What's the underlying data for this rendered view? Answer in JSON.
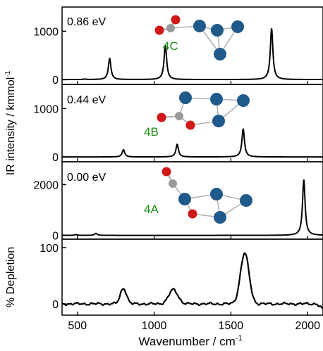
{
  "figure": {
    "xlabel": "Wavenumber / cm",
    "xlabel_sup": "-1",
    "ylabel_ir": "IR intensity / kmmol",
    "ylabel_ir_sup": "-1",
    "ylabel_depletion": "% Depletion",
    "colors": {
      "line": "#000000",
      "label_green": "#1a8f1a",
      "atom_blue": "#1f5a8a",
      "atom_red": "#d01818",
      "atom_grey": "#9a9a9a",
      "bond": "#b0b0b0"
    }
  },
  "chart_data": [
    {
      "type": "line",
      "panel": "4C",
      "energy_label": "0.86 eV",
      "isomer_label": "4C",
      "xlim": [
        400,
        2100
      ],
      "ylim": [
        -100,
        1500
      ],
      "yticks": [
        0,
        1000
      ],
      "ytick_labels": [
        "0",
        "1000"
      ],
      "fwhm": 20,
      "peaks": [
        {
          "x": 548,
          "y": 10
        },
        {
          "x": 710,
          "y": 440
        },
        {
          "x": 1073,
          "y": 720
        },
        {
          "x": 1765,
          "y": 1060
        }
      ]
    },
    {
      "type": "line",
      "panel": "4B",
      "energy_label": "0.44 eV",
      "isomer_label": "4B",
      "xlim": [
        400,
        2100
      ],
      "ylim": [
        -100,
        1500
      ],
      "yticks": [
        0,
        1000
      ],
      "ytick_labels": [
        "0",
        "1000"
      ],
      "fwhm": 20,
      "peaks": [
        {
          "x": 800,
          "y": 150
        },
        {
          "x": 1150,
          "y": 260
        },
        {
          "x": 1580,
          "y": 580
        }
      ]
    },
    {
      "type": "line",
      "panel": "4A",
      "energy_label": "0.00 eV",
      "isomer_label": "4A",
      "xlim": [
        400,
        2100
      ],
      "ylim": [
        -150,
        2900
      ],
      "yticks": [
        0,
        2000
      ],
      "ytick_labels": [
        "0",
        "2000"
      ],
      "fwhm": 20,
      "peaks": [
        {
          "x": 490,
          "y": 30
        },
        {
          "x": 620,
          "y": 80
        },
        {
          "x": 1975,
          "y": 2200
        }
      ]
    },
    {
      "type": "line",
      "panel": "depletion",
      "xlim": [
        400,
        2100
      ],
      "ylim": [
        -20,
        115
      ],
      "yticks": [
        0,
        100
      ],
      "ytick_labels": [
        "0",
        "100"
      ],
      "xticks": [
        500,
        1000,
        1500,
        2000
      ],
      "xtick_labels": [
        "500",
        "1000",
        "1500",
        "2000"
      ],
      "peaks": [
        {
          "x": 800,
          "y": 28,
          "w": 20
        },
        {
          "x": 1125,
          "y": 25,
          "w": 30
        },
        {
          "x": 1590,
          "y": 90,
          "w": 28
        }
      ]
    }
  ]
}
